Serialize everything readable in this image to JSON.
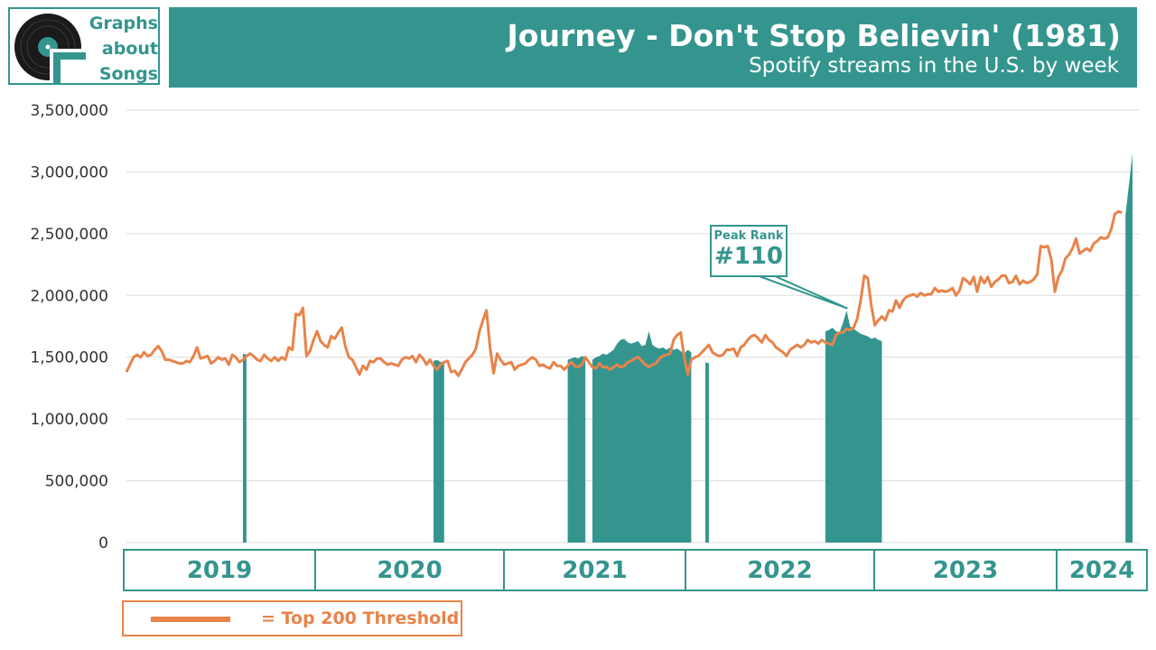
{
  "logo": {
    "line1": "Graphs",
    "line2": "about",
    "line3": "Songs"
  },
  "header": {
    "title": "Journey - Don't Stop Believin' (1981)",
    "subtitle": "Spotify streams in the U.S. by week"
  },
  "colors": {
    "accent": "#34958e",
    "threshold_line": "#e8834a",
    "grid": "#dcdcdc"
  },
  "years": [
    "2019",
    "2020",
    "2021",
    "2022",
    "2023",
    "2024"
  ],
  "legend": {
    "label": "= Top 200 Threshold"
  },
  "callout": {
    "label": "Peak Rank",
    "value": "#110"
  },
  "chart_data": {
    "type": "area",
    "title": "Journey - Don't Stop Believin' (1981)",
    "subtitle": "Spotify streams in the U.S. by week",
    "ylim": [
      0,
      3500000
    ],
    "yticks": [
      0,
      500000,
      1000000,
      1500000,
      2000000,
      2500000,
      3000000,
      3500000
    ],
    "ytick_labels": [
      "0",
      "500,000",
      "1,000,000",
      "1,500,000",
      "2,000,000",
      "2,500,000",
      "3,000,000",
      "3,500,000"
    ],
    "x": {
      "type": "week_index",
      "start_week": "2018-W52",
      "count": 286,
      "year_labels": [
        "2019",
        "2020",
        "2021",
        "2022",
        "2023",
        "2024"
      ]
    },
    "grid": true,
    "legend": "bottom-left",
    "series": [
      {
        "name": "Top 200 Threshold",
        "kind": "line",
        "color": "#e8834a",
        "values": [
          1380000,
          1440000,
          1500000,
          1520000,
          1500000,
          1540000,
          1510000,
          1520000,
          1560000,
          1590000,
          1550000,
          1480000,
          1480000,
          1470000,
          1460000,
          1450000,
          1450000,
          1470000,
          1460000,
          1510000,
          1580000,
          1490000,
          1500000,
          1510000,
          1450000,
          1470000,
          1500000,
          1480000,
          1490000,
          1440000,
          1520000,
          1500000,
          1460000,
          1480000,
          1510000,
          1530000,
          1510000,
          1480000,
          1470000,
          1520000,
          1490000,
          1470000,
          1500000,
          1470000,
          1500000,
          1480000,
          1580000,
          1560000,
          1850000,
          1840000,
          1900000,
          1510000,
          1550000,
          1640000,
          1710000,
          1630000,
          1600000,
          1580000,
          1670000,
          1650000,
          1700000,
          1740000,
          1590000,
          1500000,
          1480000,
          1420000,
          1360000,
          1430000,
          1400000,
          1470000,
          1460000,
          1490000,
          1490000,
          1460000,
          1440000,
          1450000,
          1440000,
          1430000,
          1480000,
          1500000,
          1490000,
          1510000,
          1460000,
          1520000,
          1490000,
          1440000,
          1480000,
          1430000,
          1400000,
          1440000,
          1460000,
          1470000,
          1380000,
          1390000,
          1350000,
          1400000,
          1460000,
          1490000,
          1520000,
          1570000,
          1710000,
          1800000,
          1880000,
          1580000,
          1370000,
          1530000,
          1480000,
          1440000,
          1450000,
          1460000,
          1400000,
          1430000,
          1440000,
          1450000,
          1480000,
          1500000,
          1480000,
          1430000,
          1440000,
          1420000,
          1410000,
          1460000,
          1430000,
          1430000,
          1400000,
          1430000,
          1460000,
          1430000,
          1420000,
          1440000,
          1500000,
          1460000,
          1420000,
          1410000,
          1450000,
          1420000,
          1420000,
          1400000,
          1420000,
          1440000,
          1420000,
          1430000,
          1460000,
          1470000,
          1490000,
          1500000,
          1470000,
          1440000,
          1420000,
          1440000,
          1450000,
          1490000,
          1510000,
          1520000,
          1530000,
          1640000,
          1680000,
          1700000,
          1500000,
          1360000,
          1480000,
          1500000,
          1510000,
          1540000,
          1570000,
          1600000,
          1540000,
          1520000,
          1510000,
          1520000,
          1560000,
          1560000,
          1570000,
          1510000,
          1580000,
          1600000,
          1640000,
          1670000,
          1680000,
          1650000,
          1620000,
          1680000,
          1640000,
          1620000,
          1580000,
          1560000,
          1540000,
          1510000,
          1560000,
          1580000,
          1600000,
          1580000,
          1600000,
          1640000,
          1620000,
          1630000,
          1610000,
          1640000,
          1620000,
          1610000,
          1600000,
          1680000,
          1700000,
          1700000,
          1730000,
          1720000,
          1740000,
          1810000,
          1960000,
          2160000,
          2140000,
          1920000,
          1760000,
          1800000,
          1830000,
          1800000,
          1880000,
          1870000,
          1960000,
          1900000,
          1960000,
          1990000,
          2000000,
          2010000,
          1990000,
          2020000,
          2000000,
          2010000,
          2010000,
          2060000,
          2030000,
          2040000,
          2030000,
          2040000,
          2060000,
          2000000,
          2040000,
          2140000,
          2120000,
          2090000,
          2150000,
          2030000,
          2150000,
          2100000,
          2150000,
          2070000,
          2110000,
          2130000,
          2160000,
          2160000,
          2100000,
          2110000,
          2160000,
          2090000,
          2120000,
          2100000,
          2110000,
          2130000,
          2170000,
          2400000,
          2390000,
          2400000,
          2290000,
          2030000,
          2150000,
          2200000,
          2300000,
          2330000,
          2380000,
          2460000,
          2340000,
          2360000,
          2380000,
          2360000,
          2420000,
          2440000,
          2470000,
          2460000,
          2470000,
          2540000,
          2660000,
          2680000,
          2670000
        ]
      },
      {
        "name": "Song streams (when charting)",
        "kind": "area",
        "color": "#34958e",
        "segments": [
          {
            "start_index": 33,
            "values": [
              1530000,
              1520000
            ]
          },
          {
            "start_index": 87,
            "values": [
              1470000,
              1480000,
              1460000,
              1470000
            ]
          },
          {
            "start_index": 125,
            "values": [
              1480000,
              1490000,
              1500000,
              1490000,
              1510000,
              1500000
            ]
          },
          {
            "start_index": 132,
            "values": [
              1480000,
              1500000,
              1510000,
              1530000,
              1520000,
              1540000,
              1560000,
              1610000,
              1640000,
              1650000,
              1620000,
              1610000,
              1620000,
              1630000,
              1590000,
              1600000,
              1710000,
              1600000,
              1580000,
              1570000,
              1580000,
              1560000,
              1580000,
              1560000,
              1570000,
              1550000,
              1530000,
              1560000,
              1540000
            ]
          },
          {
            "start_index": 164,
            "values": [
              1460000,
              1450000
            ]
          },
          {
            "start_index": 198,
            "values": [
              1710000,
              1720000,
              1740000,
              1710000,
              1700000,
              1780000,
              1880000,
              1750000,
              1730000,
              1710000,
              1690000,
              1680000,
              1670000,
              1650000,
              1660000,
              1640000,
              1630000
            ]
          },
          {
            "start_index": 283,
            "values": [
              2650000,
              2900000,
              3150000
            ]
          }
        ]
      }
    ],
    "annotations": [
      {
        "label": "Peak Rank",
        "value": "#110",
        "index": 204
      }
    ]
  }
}
